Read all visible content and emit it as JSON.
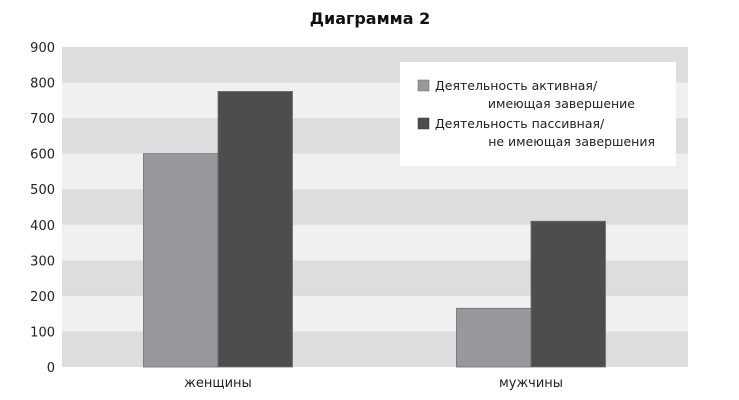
{
  "chart_data": {
    "type": "bar",
    "title": "Диаграмма 2",
    "xlabel": "",
    "ylabel": "",
    "categories": [
      "женщины",
      "мужчины"
    ],
    "series": [
      {
        "name_lines": [
          "Деятельность активная/",
          "имеющая завершение"
        ],
        "color": "#97989b",
        "values": [
          600,
          165
        ]
      },
      {
        "name_lines": [
          "Деятельность пассивная/",
          "не имеющая завершения"
        ],
        "color": "#4d4d4f",
        "values": [
          775,
          410
        ]
      }
    ],
    "ylim": [
      0,
      900
    ],
    "yticks": [
      "0",
      "100",
      "200",
      "300",
      "400",
      "500",
      "600",
      "700",
      "800",
      "900"
    ],
    "grid": "alternating horizontal bands",
    "band_colors": [
      "#dcdddf",
      "#eff0f0"
    ],
    "legend_position": "top-right"
  }
}
